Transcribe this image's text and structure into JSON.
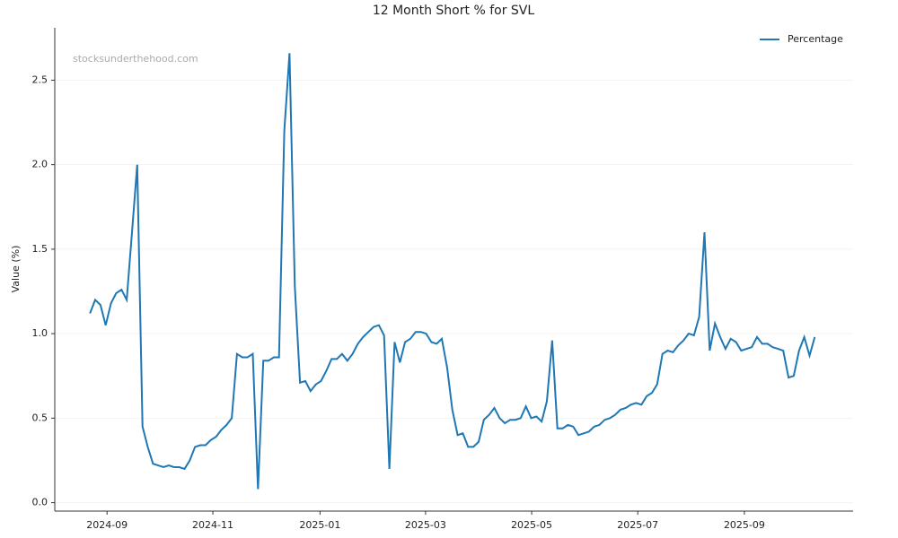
{
  "chart_data": {
    "type": "line",
    "title": "12 Month Short % for SVL",
    "y_label": "Value (%)",
    "watermark": "stocksunderthehood.com",
    "legend": "upper right",
    "grid": true,
    "xlim": [
      -6.7,
      145.3
    ],
    "xticks": [
      {
        "value": 3.25,
        "label": "2024-09"
      },
      {
        "value": 23.4,
        "label": "2024-11"
      },
      {
        "value": 43.8,
        "label": "2025-01"
      },
      {
        "value": 63.9,
        "label": "2025-03"
      },
      {
        "value": 84.1,
        "label": "2025-05"
      },
      {
        "value": 104.3,
        "label": "2025-07"
      },
      {
        "value": 124.6,
        "label": "2025-09"
      }
    ],
    "ylim": [
      -0.05,
      2.81
    ],
    "yticks": [
      {
        "value": 0,
        "label": "0.0"
      },
      0.5,
      {
        "value": 1,
        "label": "1.0"
      },
      1.5,
      {
        "value": 2,
        "label": "2.0"
      },
      2.5
    ],
    "series": [
      {
        "name": "Percentage",
        "color": "#1f77b4",
        "values": [
          1.12,
          1.2,
          1.17,
          1.05,
          1.18,
          1.24,
          1.26,
          1.2,
          1.6,
          2.0,
          0.45,
          0.33,
          0.23,
          0.22,
          0.21,
          0.22,
          0.21,
          0.21,
          0.2,
          0.25,
          0.33,
          0.34,
          0.34,
          0.37,
          0.39,
          0.43,
          0.46,
          0.5,
          0.88,
          0.86,
          0.86,
          0.88,
          0.08,
          0.84,
          0.84,
          0.86,
          0.86,
          2.2,
          2.66,
          1.28,
          0.71,
          0.72,
          0.66,
          0.7,
          0.72,
          0.78,
          0.85,
          0.85,
          0.88,
          0.84,
          0.88,
          0.94,
          0.98,
          1.01,
          1.04,
          1.05,
          0.99,
          0.2,
          0.95,
          0.83,
          0.95,
          0.97,
          1.01,
          1.01,
          1.0,
          0.95,
          0.94,
          0.97,
          0.8,
          0.55,
          0.4,
          0.41,
          0.33,
          0.33,
          0.36,
          0.49,
          0.52,
          0.56,
          0.5,
          0.47,
          0.49,
          0.49,
          0.5,
          0.57,
          0.5,
          0.51,
          0.48,
          0.6,
          0.96,
          0.44,
          0.44,
          0.46,
          0.45,
          0.4,
          0.41,
          0.42,
          0.45,
          0.46,
          0.49,
          0.5,
          0.52,
          0.55,
          0.56,
          0.58,
          0.59,
          0.58,
          0.63,
          0.65,
          0.7,
          0.88,
          0.9,
          0.89,
          0.93,
          0.96,
          1.0,
          0.99,
          1.1,
          1.6,
          0.9,
          1.06,
          0.98,
          0.91,
          0.97,
          0.95,
          0.9,
          0.91,
          0.92,
          0.98,
          0.94,
          0.94,
          0.92,
          0.91,
          0.9,
          0.74,
          0.75,
          0.9,
          0.98,
          0.87,
          0.98
        ]
      }
    ]
  }
}
